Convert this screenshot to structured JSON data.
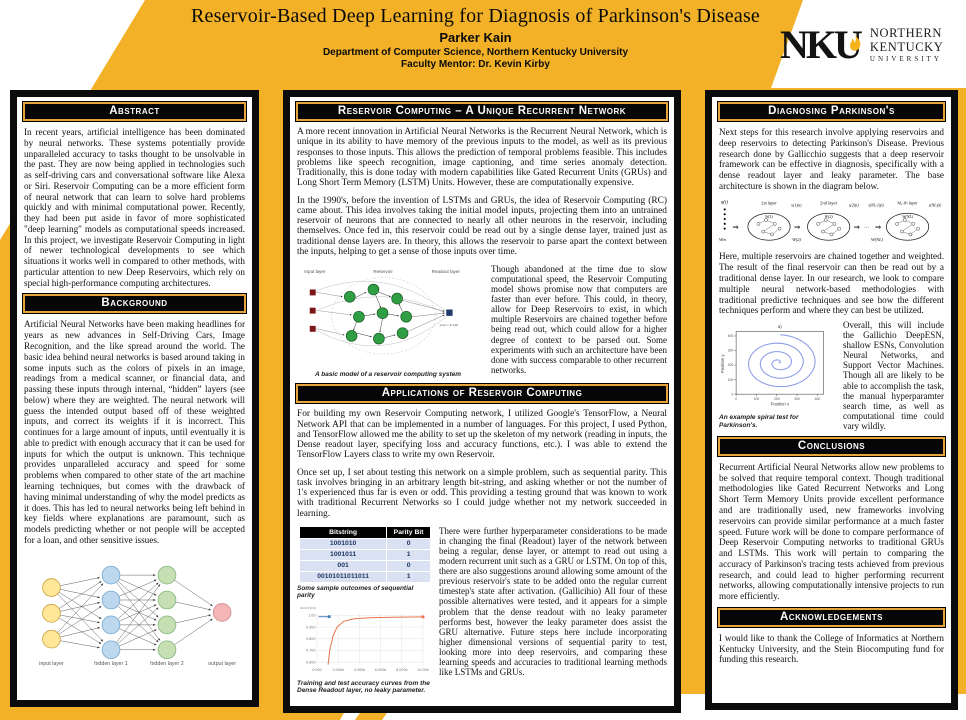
{
  "poster": {
    "title": "Reservoir-Based Deep Learning for Diagnosis of Parkinson's Disease",
    "author": "Parker Kain",
    "department": "Department of Computer Science, Northern Kentucky University",
    "mentor": "Faculty Mentor: Dr. Kevin Kirby"
  },
  "logo": {
    "acronym": "NKU",
    "line1": "NORTHERN",
    "line2": "KENTUCKY",
    "line3": "UNIVERSITY"
  },
  "colors": {
    "gold": "#F2B127",
    "panel_border": "#0B0B0B",
    "section_header_bg": "#060606",
    "section_header_border": "#E8A43C",
    "table_row_bg": "#D9E1F2",
    "train_curve": "#E8734A",
    "test_curve": "#4A7EBB",
    "spiral_stroke": "#8A9CE6"
  },
  "left_column": {
    "abstract": {
      "heading": "Abstract",
      "body": "In recent years, artificial intelligence has been dominated by neural networks. These systems potentially provide unparalleled accuracy to tasks thought to be unsolvable in the past. They are now being applied in technologies such as self-driving cars and conversational software like Alexa or Siri. Reservoir Computing can be a more efficient form of neural network that can learn to solve hard problems quickly and with minimal computational power. Recently, they had been put aside in favor of more sophisticated \"deep learning\" models as computational speeds increased. In this project, we investigate Reservoir Computing in light of newer technological developments to see which situations it works well in compared to other methods, with particular attention to new Deep Reservoirs, which rely on special high-performance computing architectures."
    },
    "background": {
      "heading": "Background",
      "body": "Artificial Neural Networks have been making headlines for years as new advances in Self-Driving Cars, Image Recognition, and the like spread around the world. The basic idea behind neural networks is based around taking in some inputs such as the colors of pixels in an image, readings from a medical scanner, or financial data, and passing these inputs through internal, “hidden” layers (see below) where they are weighted. The neural network will guess the intended output based off of these weighted inputs, and correct its weights if it is incorrect. This continues for a large amount of inputs, until eventually it is able to predict with enough accuracy that it can be used for inputs for which the output is unknown. This technique provides unparalleled accuracy and speed for some problems when compared to other state of the art machine learning techniques, but comes with the drawback of having minimal understanding of why the model predicts as it does. This has led to neural networks being left behind in key fields where explanations are paramount, such as models predicting whether or not people will be accepted for a loan, and other sensitive issues."
    },
    "nn_figure": {
      "labels": [
        "input layer",
        "hidden layer 1",
        "hidden layer 2",
        "output layer"
      ],
      "node_colors": {
        "input": "#FFE699",
        "hidden1": "#BDD7EE",
        "hidden2": "#C6E0B4",
        "output": "#F4B6B6"
      }
    }
  },
  "middle_column": {
    "reservoir": {
      "heading": "Reservoir Computing – A Unique Recurrent Network",
      "para1": "A more recent innovation in Artificial Neural Networks is the Recurrent Neural Network, which is unique in its ability to have memory of the previous inputs to the model, as well as its previous responses to those inputs. This allows the prediction of temporal problems feasible. This includes problems like speech recognition, image captioning, and time series anomaly detection. Traditionally, this is done today with modern capabilities like Gated Recurrent Units (GRUs) and Long Short Term Memory (LSTM) Units. However, these are computationally expensive.",
      "para2": "In the 1990's, before the invention of LSTMs and GRUs, the idea of Reservoir Computing (RC) came about. This idea involves taking the initial model inputs, projecting them into an untrained reservoir of neurons that are connected to nearly all other neurons in the reservoir, including themselves. Once fed in, this reservoir could be read out by a single dense layer, trained just as traditional dense layers are. In theory, this allows the reservoir to parse apart the context between the inputs, helping to get a sense of those inputs over time.",
      "figure": {
        "labels": [
          "Input layer",
          "Reservoir",
          "Readout layer"
        ],
        "formula": "yout = Σ wixi",
        "caption": "A basic model of a reservoir computing system"
      },
      "side_text": "Though abandoned at the time due to slow computational speed, the Reservoir Computing model shows promise now that computers are faster than ever before. This could, in theory, allow for Deep Reservoirs to exist, in which multiple Reservoirs are chained together before being read out, which could allow for a higher degree of context to be parsed out. Some experiments with such an architecture have been done with success comparable to other recurrent networks."
    },
    "applications": {
      "heading": "Applications of Reservoir Computing",
      "para1": "For building my own Reservoir Computing network, I utilized Google's TensorFlow, a Neural Network API that can be implemented in a number of languages. For this project, I used Python, and TensorFlow allowed me the ability to set up the skeleton of my network (reading in inputs, the Dense readout layer, specifying loss and accuracy functions, etc.). I was able to extend the TensorFlow Layers class to write my own Reservoir.",
      "para2": "Once set up, I set about testing this network on a simple problem, such as sequential parity. This task involves bringing in an arbitrary length bit-string, and asking whether or not the number of 1's experienced thus far is even or odd. This providing a testing ground that was known to work with traditional Recurrent Networks so I could judge whether not my network succeeded in learning.",
      "table": {
        "headers": [
          "Bitstring",
          "Parity Bit"
        ],
        "rows": [
          [
            "1001010",
            "0"
          ],
          [
            "1001011",
            "1"
          ],
          [
            "001",
            "0"
          ],
          [
            "00101011011011",
            "1"
          ]
        ],
        "caption": "Some sample outcomes of sequential parity"
      },
      "chart_caption": "Training and test accuracy curves from the Dense Readout layer, no leaky parameter.",
      "side_text": "There were further hyperparameter considerations to be made in changing the final (Readout) layer of the network between being a regular, dense layer, or attempt to read out using a modern recurrent unit such as a GRU or LSTM. On top of this, there are also suggestions around allowing some amount of the previous reservoir's state to be added onto the regular current timestep's state after activation. (Gallicihio) All four of these possible alternatives were tested, and it appears for a simple problem that the dense readout with no leaky parameter performs best, however the leaky parameter does assist the GRU alternative. Future steps here include incorporating higher dimensional versions of sequential parity to test, looking more into deep reservoirs, and comparing these learning speeds and accuracies to traditional learning methods like LSTMs and GRUs."
    }
  },
  "right_column": {
    "diagnosing": {
      "heading": "Diagnosing Parkinson's",
      "para1": "Next steps for this research involve applying reservoirs and deep reservoirs to detecting Parkinson's Disease. Previous research done by Gallicchio suggests that a deep reservoir framework can be effective in diagnosis, specifically with a dense readout layer and leaky parameter. The base architecture is shown in the diagram below.",
      "diagram": {
        "input": "u(t)",
        "w_in": "Win",
        "arrow": "⇒",
        "dots": "...",
        "layer1": "1st layer",
        "layer2": "2nd layer",
        "layerN": "NL-th layer",
        "w1": "W(1)",
        "w2": "W(2)",
        "wN": "W(NL)",
        "x1": "x(1)(t)",
        "x2": "x(2)(t)",
        "xNm1": "x(NL-1)(t)",
        "xN": "x(NL)(t)"
      },
      "para2": "Here, multiple reservoirs are chained together and weighted. The result of the final reservoir can then be read out by a traditional dense layer. In our research, we look to compare multiple neural network-based methodologies with traditional predictive techniques and see how the different techniques perform and where they can best be utilized.",
      "side_text": "Overall, this will include the Gallichio DeepESN, shallow ESNs, Convolution Neural Networks, and Support Vector Machines. Though all are likely to be able to accomplish the task, the manual hyperparamter search time, as well as computational time could vary wildly.",
      "spiral_caption": "An example spiral test for Parkinson's."
    },
    "conclusions": {
      "heading": "Conclusions",
      "body": "Recurrent Artificial Neural Networks allow new problems to be solved that require temporal context. Though traditional methodologies like Gated Recurrent Networks and Long Short Term Memory Units provide excellent performance and are traditionally used, new frameworks involving reservoirs can provide similar performance at a much faster speed. Future work will be done to compare performance of Deep Reservoir Computing networks to traditional GRUs and LSTMs. This work will pertain to comparing the accuracy of Parkinson's tracing tests achieved from previous research, and could lead to higher performing recurrent networks, allowing computationally intensive projects to run more efficiently."
    },
    "acknowledgements": {
      "heading": "Acknowledgements",
      "body": "I would like to thank the College of Informatics at Northern Kentucky University, and the Stein Biocomputing fund for funding this research."
    }
  },
  "chart_data": [
    {
      "type": "line",
      "title": "accuracy",
      "x_ticks": [
        "0.000",
        "2.000k",
        "4.000k",
        "6.000k",
        "8.000k",
        "10.00k"
      ],
      "y_ticks": [
        "1.00",
        "0.900",
        "0.800",
        "0.700",
        "0.600"
      ],
      "xlim": [
        0,
        10000
      ],
      "ylim": [
        0.575,
        1.02
      ],
      "series": [
        {
          "name": "training accuracy (dense readout, no leaky parameter)",
          "color": "#E8734A",
          "points": [
            [
              1050,
              0.578
            ],
            [
              1200,
              0.7
            ],
            [
              1500,
              0.82
            ],
            [
              1900,
              0.9
            ],
            [
              2500,
              0.948
            ],
            [
              3500,
              0.97
            ],
            [
              5000,
              0.98
            ],
            [
              7000,
              0.984
            ],
            [
              10000,
              0.987
            ]
          ]
        },
        {
          "name": "test accuracy",
          "color": "#4A7EBB",
          "points": [
            [
              150,
              0.988
            ],
            [
              1150,
              0.988
            ]
          ]
        }
      ]
    },
    {
      "type": "line",
      "title": "a)",
      "xlabel": "Position x",
      "ylabel": "Position y",
      "ticks": [
        "0",
        "100",
        "200",
        "300",
        "400"
      ],
      "xlim": [
        0,
        430
      ],
      "ylim": [
        0,
        430
      ],
      "series": [
        {
          "name": "example spiral trace",
          "color": "#8A9CE6",
          "spiral": {
            "cx": 210,
            "cy": 215,
            "turns": 3.3,
            "max_radius": 192,
            "phase_deg": -20
          }
        }
      ]
    }
  ]
}
